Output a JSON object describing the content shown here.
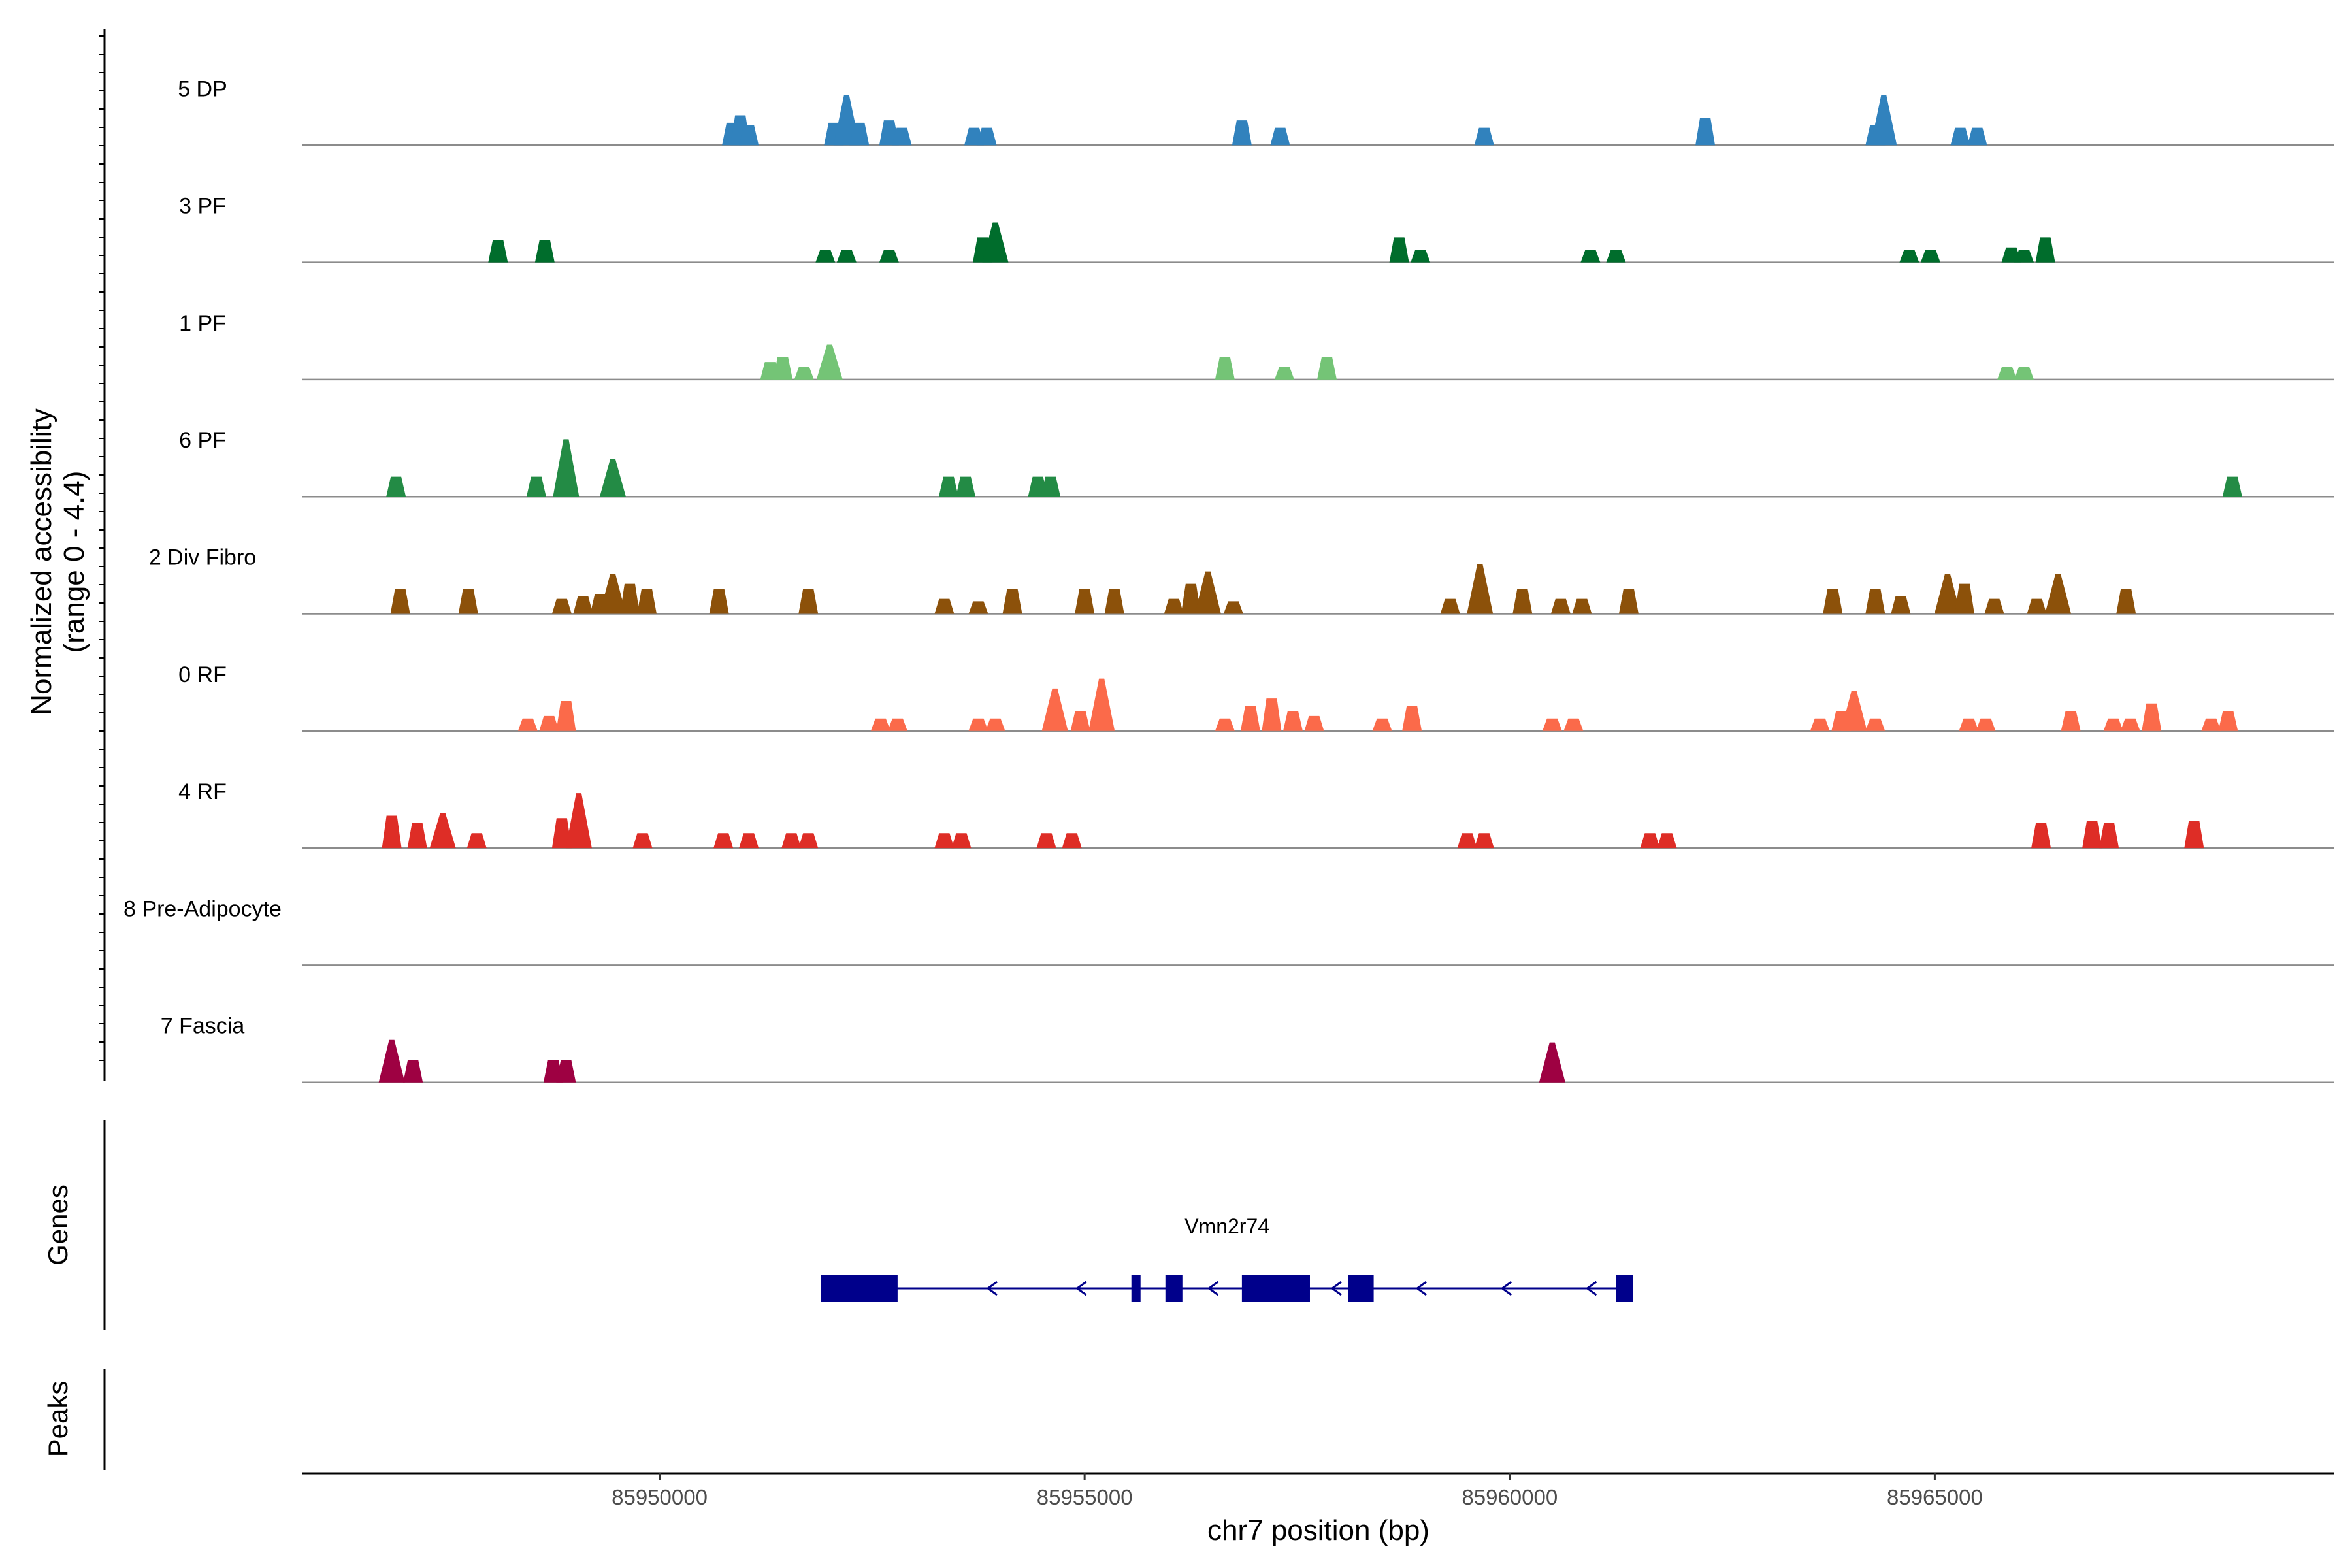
{
  "chart_data": {
    "type": "coverage",
    "ylabel_line1": "Normalized accessibility",
    "ylabel_line2": "(range 0 - 4.4)",
    "ylim": [
      0,
      4.4
    ],
    "xlabel": "chr7 position (bp)",
    "xlim": [
      85945800,
      85969700
    ],
    "xticks": [
      85950000,
      85955000,
      85960000,
      85965000
    ],
    "xtick_labels": [
      "85950000",
      "85955000",
      "85960000",
      "85965000"
    ],
    "genes_panel_label": "Genes",
    "peaks_panel_label": "Peaks",
    "gene": {
      "name": "Vmn2r74",
      "strand": "-",
      "start": 85951900,
      "end": 85961450,
      "color": "#00008b",
      "exons": [
        [
          85951900,
          85952800
        ],
        [
          85955550,
          85955650
        ],
        [
          85955950,
          85956150
        ],
        [
          85956850,
          85957650
        ],
        [
          85958100,
          85958400
        ],
        [
          85961250,
          85961450
        ]
      ],
      "arrows": [
        85953900,
        85954950,
        85956500,
        85957950,
        85958950,
        85959950,
        85960950
      ]
    },
    "tracks": [
      {
        "name": "5 DP",
        "color": "#3182bd",
        "peaks": [
          [
            85950850,
            0.9
          ],
          [
            85950950,
            1.2
          ],
          [
            85951050,
            0.8
          ],
          [
            85952050,
            0.9
          ],
          [
            85952200,
            2.0
          ],
          [
            85952350,
            0.9
          ],
          [
            85952700,
            1.0
          ],
          [
            85952850,
            0.7
          ],
          [
            85953700,
            0.7
          ],
          [
            85953850,
            0.7
          ],
          [
            85956850,
            1.0
          ],
          [
            85957300,
            0.7
          ],
          [
            85959700,
            0.7
          ],
          [
            85962300,
            1.1
          ],
          [
            85964300,
            0.8
          ],
          [
            85964400,
            2.0
          ],
          [
            85965300,
            0.7
          ],
          [
            85965500,
            0.7
          ]
        ]
      },
      {
        "name": "3 PF",
        "color": "#006d2c",
        "peaks": [
          [
            85948100,
            0.9
          ],
          [
            85948650,
            0.9
          ],
          [
            85951950,
            0.5
          ],
          [
            85952200,
            0.5
          ],
          [
            85952700,
            0.5
          ],
          [
            85953800,
            1.0
          ],
          [
            85953950,
            1.6
          ],
          [
            85958700,
            1.0
          ],
          [
            85958950,
            0.5
          ],
          [
            85960950,
            0.5
          ],
          [
            85961250,
            0.5
          ],
          [
            85964700,
            0.5
          ],
          [
            85964950,
            0.5
          ],
          [
            85965900,
            0.6
          ],
          [
            85966050,
            0.5
          ],
          [
            85966300,
            1.0
          ]
        ]
      },
      {
        "name": "1 PF",
        "color": "#74c476",
        "peaks": [
          [
            85951300,
            0.7
          ],
          [
            85951450,
            0.9
          ],
          [
            85951700,
            0.5
          ],
          [
            85952000,
            1.4
          ],
          [
            85956650,
            0.9
          ],
          [
            85957350,
            0.5
          ],
          [
            85957850,
            0.9
          ],
          [
            85965850,
            0.5
          ],
          [
            85966050,
            0.5
          ]
        ]
      },
      {
        "name": "6 PF",
        "color": "#238b45",
        "peaks": [
          [
            85946900,
            0.8
          ],
          [
            85948550,
            0.8
          ],
          [
            85948900,
            2.3
          ],
          [
            85949450,
            1.5
          ],
          [
            85953400,
            0.8
          ],
          [
            85953600,
            0.8
          ],
          [
            85954450,
            0.8
          ],
          [
            85954600,
            0.8
          ],
          [
            85968500,
            0.8
          ]
        ]
      },
      {
        "name": "2 Div Fibro",
        "color": "#8c510a",
        "peaks": [
          [
            85946950,
            1.0
          ],
          [
            85947750,
            1.0
          ],
          [
            85948850,
            0.6
          ],
          [
            85949100,
            0.7
          ],
          [
            85949300,
            0.8
          ],
          [
            85949450,
            1.6
          ],
          [
            85949650,
            1.2
          ],
          [
            85949850,
            1.0
          ],
          [
            85950700,
            1.0
          ],
          [
            85951750,
            1.0
          ],
          [
            85953350,
            0.6
          ],
          [
            85953750,
            0.5
          ],
          [
            85954150,
            1.0
          ],
          [
            85955000,
            1.0
          ],
          [
            85955350,
            1.0
          ],
          [
            85956050,
            0.6
          ],
          [
            85956250,
            1.2
          ],
          [
            85956450,
            1.7
          ],
          [
            85956750,
            0.5
          ],
          [
            85959300,
            0.6
          ],
          [
            85959650,
            2.0
          ],
          [
            85960150,
            1.0
          ],
          [
            85960600,
            0.6
          ],
          [
            85960850,
            0.6
          ],
          [
            85961400,
            1.0
          ],
          [
            85963800,
            1.0
          ],
          [
            85964300,
            1.0
          ],
          [
            85964600,
            0.7
          ],
          [
            85965150,
            1.6
          ],
          [
            85965350,
            1.2
          ],
          [
            85965700,
            0.6
          ],
          [
            85966200,
            0.6
          ],
          [
            85966450,
            1.6
          ],
          [
            85967250,
            1.0
          ]
        ]
      },
      {
        "name": "0 RF",
        "color": "#fb6a4a",
        "peaks": [
          [
            85948450,
            0.5
          ],
          [
            85948700,
            0.6
          ],
          [
            85948900,
            1.2
          ],
          [
            85952600,
            0.5
          ],
          [
            85952800,
            0.5
          ],
          [
            85953750,
            0.5
          ],
          [
            85953950,
            0.5
          ],
          [
            85954650,
            1.7
          ],
          [
            85954950,
            0.8
          ],
          [
            85955200,
            2.1
          ],
          [
            85956650,
            0.5
          ],
          [
            85956950,
            1.0
          ],
          [
            85957200,
            1.3
          ],
          [
            85957450,
            0.8
          ],
          [
            85957700,
            0.6
          ],
          [
            85958500,
            0.5
          ],
          [
            85958850,
            1.0
          ],
          [
            85960500,
            0.5
          ],
          [
            85960750,
            0.5
          ],
          [
            85963650,
            0.5
          ],
          [
            85963900,
            0.8
          ],
          [
            85964050,
            1.6
          ],
          [
            85964300,
            0.5
          ],
          [
            85965400,
            0.5
          ],
          [
            85965600,
            0.5
          ],
          [
            85966600,
            0.8
          ],
          [
            85967100,
            0.5
          ],
          [
            85967300,
            0.5
          ],
          [
            85967550,
            1.1
          ],
          [
            85968250,
            0.5
          ],
          [
            85968450,
            0.8
          ]
        ]
      },
      {
        "name": "4 RF",
        "color": "#de2d26",
        "peaks": [
          [
            85946850,
            1.3
          ],
          [
            85947150,
            1.0
          ],
          [
            85947450,
            1.4
          ],
          [
            85947850,
            0.6
          ],
          [
            85948850,
            1.2
          ],
          [
            85949050,
            2.2
          ],
          [
            85949800,
            0.6
          ],
          [
            85950750,
            0.6
          ],
          [
            85951050,
            0.6
          ],
          [
            85951550,
            0.6
          ],
          [
            85951750,
            0.6
          ],
          [
            85953350,
            0.6
          ],
          [
            85953550,
            0.6
          ],
          [
            85954550,
            0.6
          ],
          [
            85954850,
            0.6
          ],
          [
            85959500,
            0.6
          ],
          [
            85959700,
            0.6
          ],
          [
            85961650,
            0.6
          ],
          [
            85961850,
            0.6
          ],
          [
            85966250,
            1.0
          ],
          [
            85966850,
            1.1
          ],
          [
            85967050,
            1.0
          ],
          [
            85968050,
            1.1
          ]
        ]
      },
      {
        "name": "8 Pre-Adipocyte",
        "color": "#756bb1",
        "peaks": []
      },
      {
        "name": "7 Fascia",
        "color": "#9e0142",
        "peaks": [
          [
            85946850,
            1.7
          ],
          [
            85947100,
            0.9
          ],
          [
            85948750,
            0.9
          ],
          [
            85948900,
            0.9
          ],
          [
            85960500,
            1.6
          ]
        ]
      }
    ]
  }
}
